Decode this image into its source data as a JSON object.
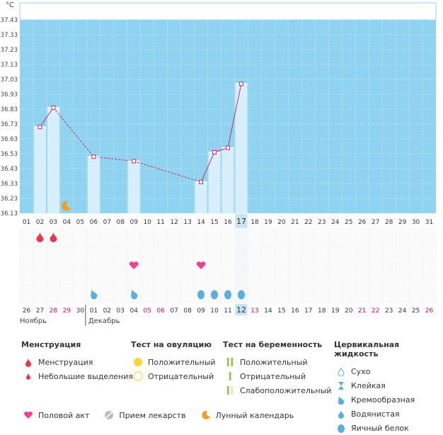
{
  "chart_data": {
    "type": "line",
    "ylabel": "°C",
    "y_ticks": [
      "37.43",
      "37.33",
      "37.23",
      "37.13",
      "37.03",
      "36.93",
      "36.83",
      "36.73",
      "36.63",
      "36.53",
      "36.43",
      "36.33",
      "36.23",
      "36.13"
    ],
    "ylim": [
      36.13,
      37.43
    ],
    "days": [
      "01",
      "02",
      "03",
      "04",
      "05",
      "06",
      "07",
      "08",
      "09",
      "10",
      "11",
      "12",
      "13",
      "14",
      "15",
      "16",
      "17",
      "18",
      "19",
      "20",
      "21",
      "22",
      "23",
      "24",
      "25",
      "26",
      "27",
      "28",
      "29",
      "30",
      "31"
    ],
    "highlight_day": "17",
    "temperatures": [
      {
        "day": "02",
        "t": 36.71
      },
      {
        "day": "03",
        "t": 36.84
      },
      {
        "day": "06",
        "t": 36.51
      },
      {
        "day": "09",
        "t": 36.48
      },
      {
        "day": "14",
        "t": 36.34
      },
      {
        "day": "15",
        "t": 36.54
      },
      {
        "day": "16",
        "t": 36.57
      },
      {
        "day": "17",
        "t": 37.0
      }
    ],
    "cycle_dates": [
      "26",
      "27",
      "28",
      "29",
      "30",
      "01",
      "02",
      "03",
      "04",
      "05",
      "06",
      "07",
      "08",
      "09",
      "10",
      "11",
      "12",
      "13",
      "14",
      "15",
      "16",
      "17",
      "18",
      "19",
      "20",
      "21",
      "22",
      "23",
      "24",
      "25",
      "26"
    ],
    "cycle_red_dates": [
      2,
      3,
      9,
      10,
      17,
      25,
      26,
      30
    ],
    "highlight_cycle_date": "12",
    "month_left": "Ноябрь",
    "month_right": "Декабрь",
    "moon_day": "04",
    "menstruation_days": [
      "02",
      "03"
    ],
    "intercourse_days": [
      "09",
      "14"
    ],
    "fluid": [
      {
        "day": "06",
        "type": "creamy"
      },
      {
        "day": "09",
        "type": "creamy"
      },
      {
        "day": "14",
        "type": "egg-white"
      },
      {
        "day": "15",
        "type": "egg-white"
      },
      {
        "day": "16",
        "type": "egg-white"
      },
      {
        "day": "17",
        "type": "egg-white"
      }
    ],
    "colors": {
      "plot_bg": "#8fd3f1",
      "bar": "#d6effb",
      "line": "#d12a5a",
      "highlight": "#c8e4f3",
      "red_date": "#d0103a"
    }
  },
  "legend": {
    "menstr": {
      "title": "Менструация",
      "items": [
        "Менструация",
        "Небольшие выделения"
      ]
    },
    "ovul": {
      "title": "Тест на овуляцию",
      "items": [
        "Положительный",
        "Отрицательный"
      ]
    },
    "preg": {
      "title": "Тест на беременность",
      "items": [
        "Положительный",
        "Отрицательный",
        "Слабоположительный"
      ]
    },
    "fluid": {
      "title": "Цервикальная жидкость",
      "items": [
        "Сухо",
        "Клейкая",
        "Кремообразная",
        "Водянистая",
        "Яичный белок"
      ]
    },
    "bottom": [
      "Половой акт",
      "Прием лекарств",
      "Лунный календарь"
    ]
  }
}
